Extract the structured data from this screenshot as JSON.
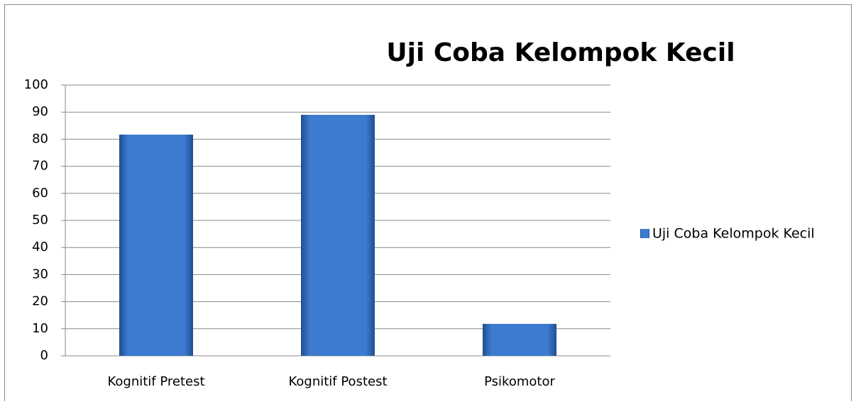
{
  "chart_data": {
    "type": "bar",
    "title": "Uji Coba Kelompok Kecil",
    "categories": [
      "Kognitif Pretest",
      "Kognitif Postest",
      "Psikomotor"
    ],
    "series": [
      {
        "name": "Uji Coba Kelompok Kecil",
        "color": "#3c7bd0",
        "values": [
          81.7,
          89,
          11.8
        ]
      }
    ],
    "ylim": [
      0,
      100
    ],
    "yticks": [
      0,
      10,
      20,
      30,
      40,
      50,
      60,
      70,
      80,
      90,
      100
    ],
    "grid": true,
    "legend": "right"
  }
}
